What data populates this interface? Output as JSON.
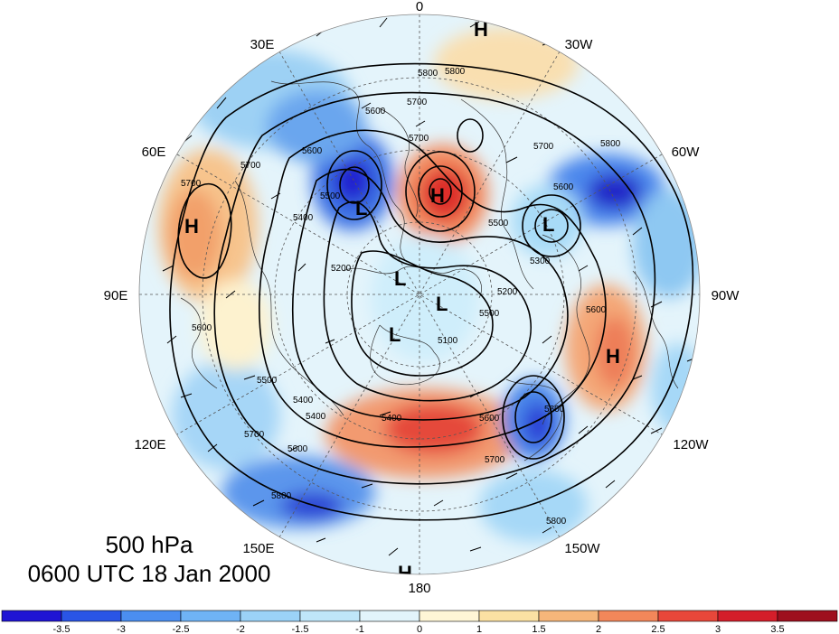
{
  "caption": {
    "level": "500 hPa",
    "time": "0600 UTC 18 Jan 2000"
  },
  "map": {
    "projection": "north polar stereographic",
    "longitude_labels": [
      "0",
      "30W",
      "60W",
      "90W",
      "120W",
      "150W",
      "180",
      "150E",
      "120E",
      "90E",
      "60E",
      "30E"
    ],
    "contour_labels": [
      "5800",
      "5800",
      "5700",
      "5600",
      "5700",
      "5600",
      "5700",
      "5800",
      "5700",
      "5600",
      "5500",
      "5400",
      "5300",
      "5200",
      "5100",
      "5400",
      "5500",
      "5600",
      "5600",
      "5700",
      "5800",
      "5500",
      "5600",
      "5700",
      "5800",
      "5400",
      "5200",
      "5500",
      "5600",
      "5700",
      "5600",
      "5400"
    ],
    "pressure_centers": [
      {
        "type": "H",
        "label": "H"
      },
      {
        "type": "H",
        "label": "H"
      },
      {
        "type": "H",
        "label": "H"
      },
      {
        "type": "H",
        "label": "H"
      },
      {
        "type": "L",
        "label": "L"
      },
      {
        "type": "L",
        "label": "L"
      },
      {
        "type": "L",
        "label": "L"
      },
      {
        "type": "L",
        "label": "L"
      },
      {
        "type": "L",
        "label": "L"
      },
      {
        "type": "H",
        "label": "H"
      }
    ]
  },
  "colorbar": {
    "tick_labels": [
      "-3.5",
      "-3",
      "-2.5",
      "-2",
      "-1.5",
      "-1",
      "0",
      "1",
      "1.5",
      "2",
      "2.5",
      "3",
      "3.5"
    ],
    "colors": [
      "#1f14d4",
      "#2a55e6",
      "#4b8ef0",
      "#6fb3f5",
      "#9bd2f7",
      "#bfe6f9",
      "#e2f4fb",
      "#fff6d6",
      "#fbe1a3",
      "#f6b67a",
      "#f2875a",
      "#e8473a",
      "#d41e2a",
      "#9e0f1e"
    ]
  },
  "colors": {
    "ocean_outline": "#000000",
    "background": "#ffffff"
  }
}
